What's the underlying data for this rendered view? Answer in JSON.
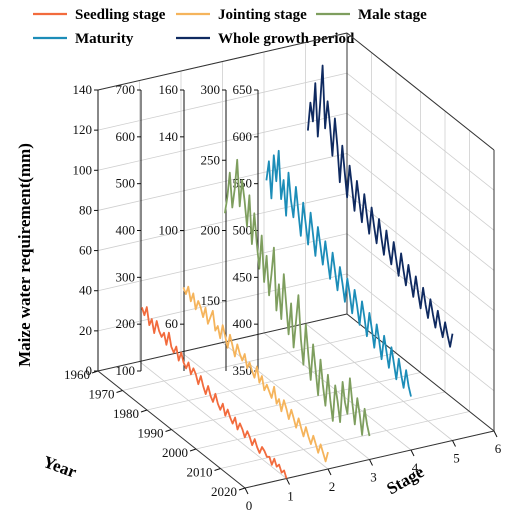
{
  "chart_data": {
    "type": "line",
    "title": "",
    "xlabel": "Year",
    "ylabel": "Stage",
    "zlabel": "Maize water requirement(mm)",
    "year_ticks": [
      "1960",
      "1970",
      "1980",
      "1990",
      "2000",
      "2010",
      "2020"
    ],
    "stage_ticks": [
      "0",
      "1",
      "2",
      "3",
      "4",
      "5",
      "6"
    ],
    "legend_position": "top",
    "series": [
      {
        "name": "Seedling stage",
        "color": "#F26B3D",
        "stage": 1,
        "z_ticks": [
          "0",
          "20",
          "40",
          "60",
          "80",
          "100",
          "120",
          "140"
        ],
        "zlim": [
          0,
          140
        ],
        "start_year": 1961,
        "values": [
          28,
          25,
          30,
          22,
          26,
          20,
          27,
          23,
          21,
          24,
          19,
          26,
          20,
          18,
          22,
          16,
          21,
          17,
          15,
          19,
          14,
          18,
          16,
          12,
          17,
          13,
          10,
          15,
          11,
          9,
          14,
          10,
          8,
          12,
          7,
          11,
          8,
          6,
          10,
          5,
          9,
          7,
          4,
          8,
          6,
          3,
          7,
          4,
          2,
          6,
          5,
          3,
          4,
          1,
          5,
          2,
          4,
          1,
          3,
          0
        ]
      },
      {
        "name": "Jointing stage",
        "color": "#F5B45C",
        "stage": 2,
        "z_ticks": [
          "100",
          "200",
          "300",
          "400",
          "500",
          "600",
          "700"
        ],
        "zlim": [
          100,
          700
        ],
        "start_year": 1961,
        "values": [
          242,
          232,
          252,
          225,
          246,
          216,
          238,
          229,
          212,
          236,
          206,
          224,
          242,
          204,
          218,
          196,
          228,
          210,
          188,
          220,
          202,
          182,
          212,
          196,
          186,
          204,
          178,
          194,
          180,
          170,
          198,
          168,
          186,
          160,
          176,
          166,
          156,
          184,
          152,
          166,
          144,
          172,
          158,
          140,
          164,
          150,
          134,
          158,
          142,
          128,
          152,
          136,
          124,
          146,
          132,
          118,
          140,
          126,
          112,
          136
        ]
      },
      {
        "name": "Male stage",
        "color": "#7E9E5E",
        "stage": 3,
        "z_ticks": [
          "60",
          "100",
          "140",
          "160"
        ],
        "zlim": [
          40,
          160
        ],
        "start_year": 1961,
        "values": [
          96,
          104,
          115,
          101,
          110,
          123,
          104,
          116,
          108,
          98,
          112,
          92,
          106,
          94,
          84,
          99,
          80,
          92,
          76,
          86,
          98,
          72,
          84,
          70,
          90,
          78,
          66,
          80,
          62,
          74,
          86,
          68,
          58,
          76,
          64,
          54,
          70,
          60,
          50,
          66,
          56,
          48,
          62,
          52,
          44,
          60,
          54,
          46,
          64,
          56,
          52,
          68,
          58,
          50,
          62,
          56,
          48,
          60,
          54,
          50
        ]
      },
      {
        "name": "Maturity",
        "color": "#1C8DB8",
        "stage": 4,
        "z_ticks": [
          "150",
          "200",
          "250",
          "300"
        ],
        "zlim": [
          100,
          300
        ],
        "start_year": 1961,
        "values": [
          210,
          225,
          200,
          232,
          215,
          238,
          205,
          220,
          196,
          228,
          210,
          199,
          222,
          206,
          190,
          215,
          202,
          188,
          212,
          198,
          184,
          206,
          194,
          182,
          200,
          188,
          176,
          196,
          184,
          172,
          190,
          180,
          168,
          186,
          176,
          164,
          182,
          172,
          160,
          178,
          168,
          156,
          174,
          164,
          152,
          170,
          160,
          148,
          166,
          156,
          146,
          162,
          152,
          142,
          158,
          148,
          140,
          154,
          144,
          138
        ]
      },
      {
        "name": "Whole growth period",
        "color": "#0F2A60",
        "stage": 5,
        "z_ticks": [
          "350",
          "400",
          "450",
          "500",
          "550",
          "600",
          "650"
        ],
        "zlim": [
          350,
          650
        ],
        "start_year": 1961,
        "values": [
          558,
          590,
          572,
          615,
          560,
          598,
          640,
          575,
          606,
          582,
          552,
          594,
          566,
          530,
          571,
          545,
          520,
          556,
          534,
          512,
          546,
          526,
          506,
          538,
          518,
          500,
          530,
          512,
          496,
          524,
          506,
          490,
          518,
          500,
          486,
          512,
          496,
          480,
          506,
          490,
          476,
          500,
          484,
          470,
          494,
          478,
          464,
          488,
          472,
          460,
          482,
          468,
          456,
          476,
          462,
          452,
          470,
          458,
          448,
          464
        ]
      }
    ]
  }
}
